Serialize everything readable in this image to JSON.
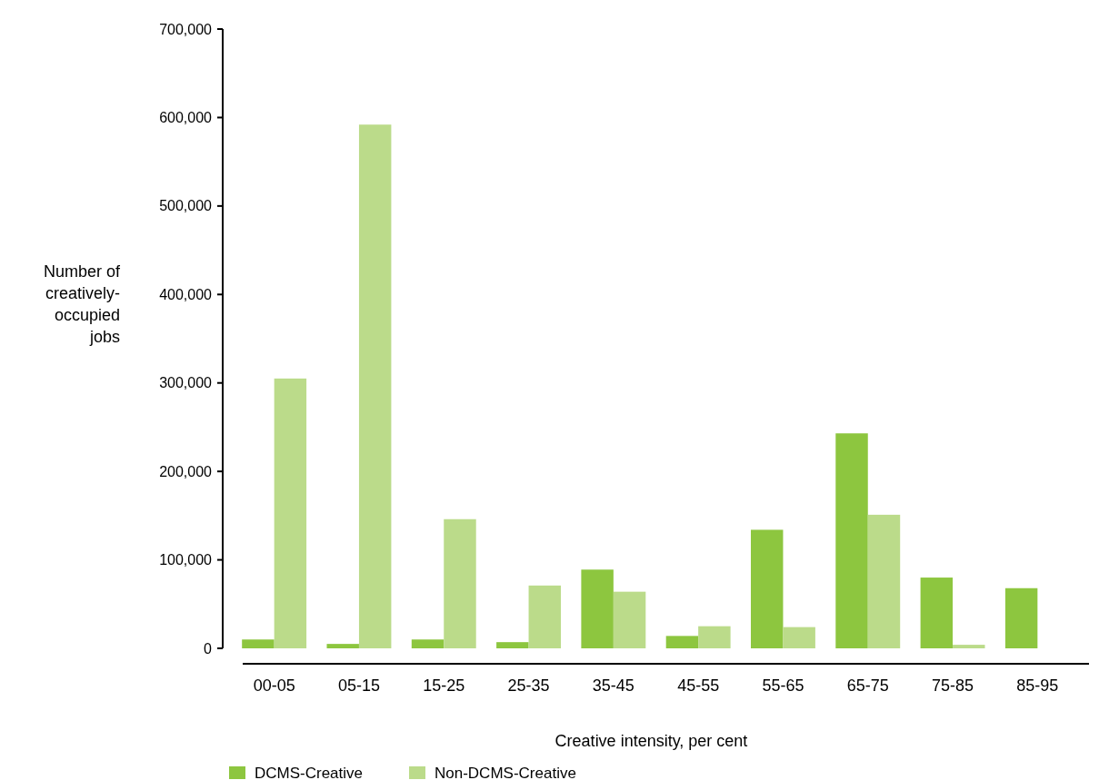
{
  "chart_data": {
    "type": "bar",
    "xlabel": "Creative intensity, per cent",
    "ylabel": "Number of creatively-occupied jobs",
    "categories": [
      "00-05",
      "05-15",
      "15-25",
      "25-35",
      "35-45",
      "45-55",
      "55-65",
      "65-75",
      "75-85",
      "85-95"
    ],
    "series": [
      {
        "name": "DCMS-Creative",
        "color": "#8dc63f",
        "values": [
          10000,
          5000,
          10000,
          7000,
          89000,
          14000,
          134000,
          243000,
          80000,
          68000
        ]
      },
      {
        "name": "Non-DCMS-Creative",
        "color": "#bbdb8a",
        "values": [
          305000,
          592000,
          146000,
          71000,
          64000,
          25000,
          24000,
          151000,
          4000,
          null
        ]
      }
    ],
    "ylim": [
      0,
      700000
    ],
    "yticks": [
      {
        "value": 0,
        "label": "0"
      },
      {
        "value": 100000,
        "label": "100,000"
      },
      {
        "value": 200000,
        "label": "200,000"
      },
      {
        "value": 300000,
        "label": "300,000"
      },
      {
        "value": 400000,
        "label": "400,000"
      },
      {
        "value": 500000,
        "label": "500,000"
      },
      {
        "value": 600000,
        "label": "600,000"
      },
      {
        "value": 700000,
        "label": "700,000"
      }
    ],
    "grid": false,
    "legend": "bottom left"
  }
}
